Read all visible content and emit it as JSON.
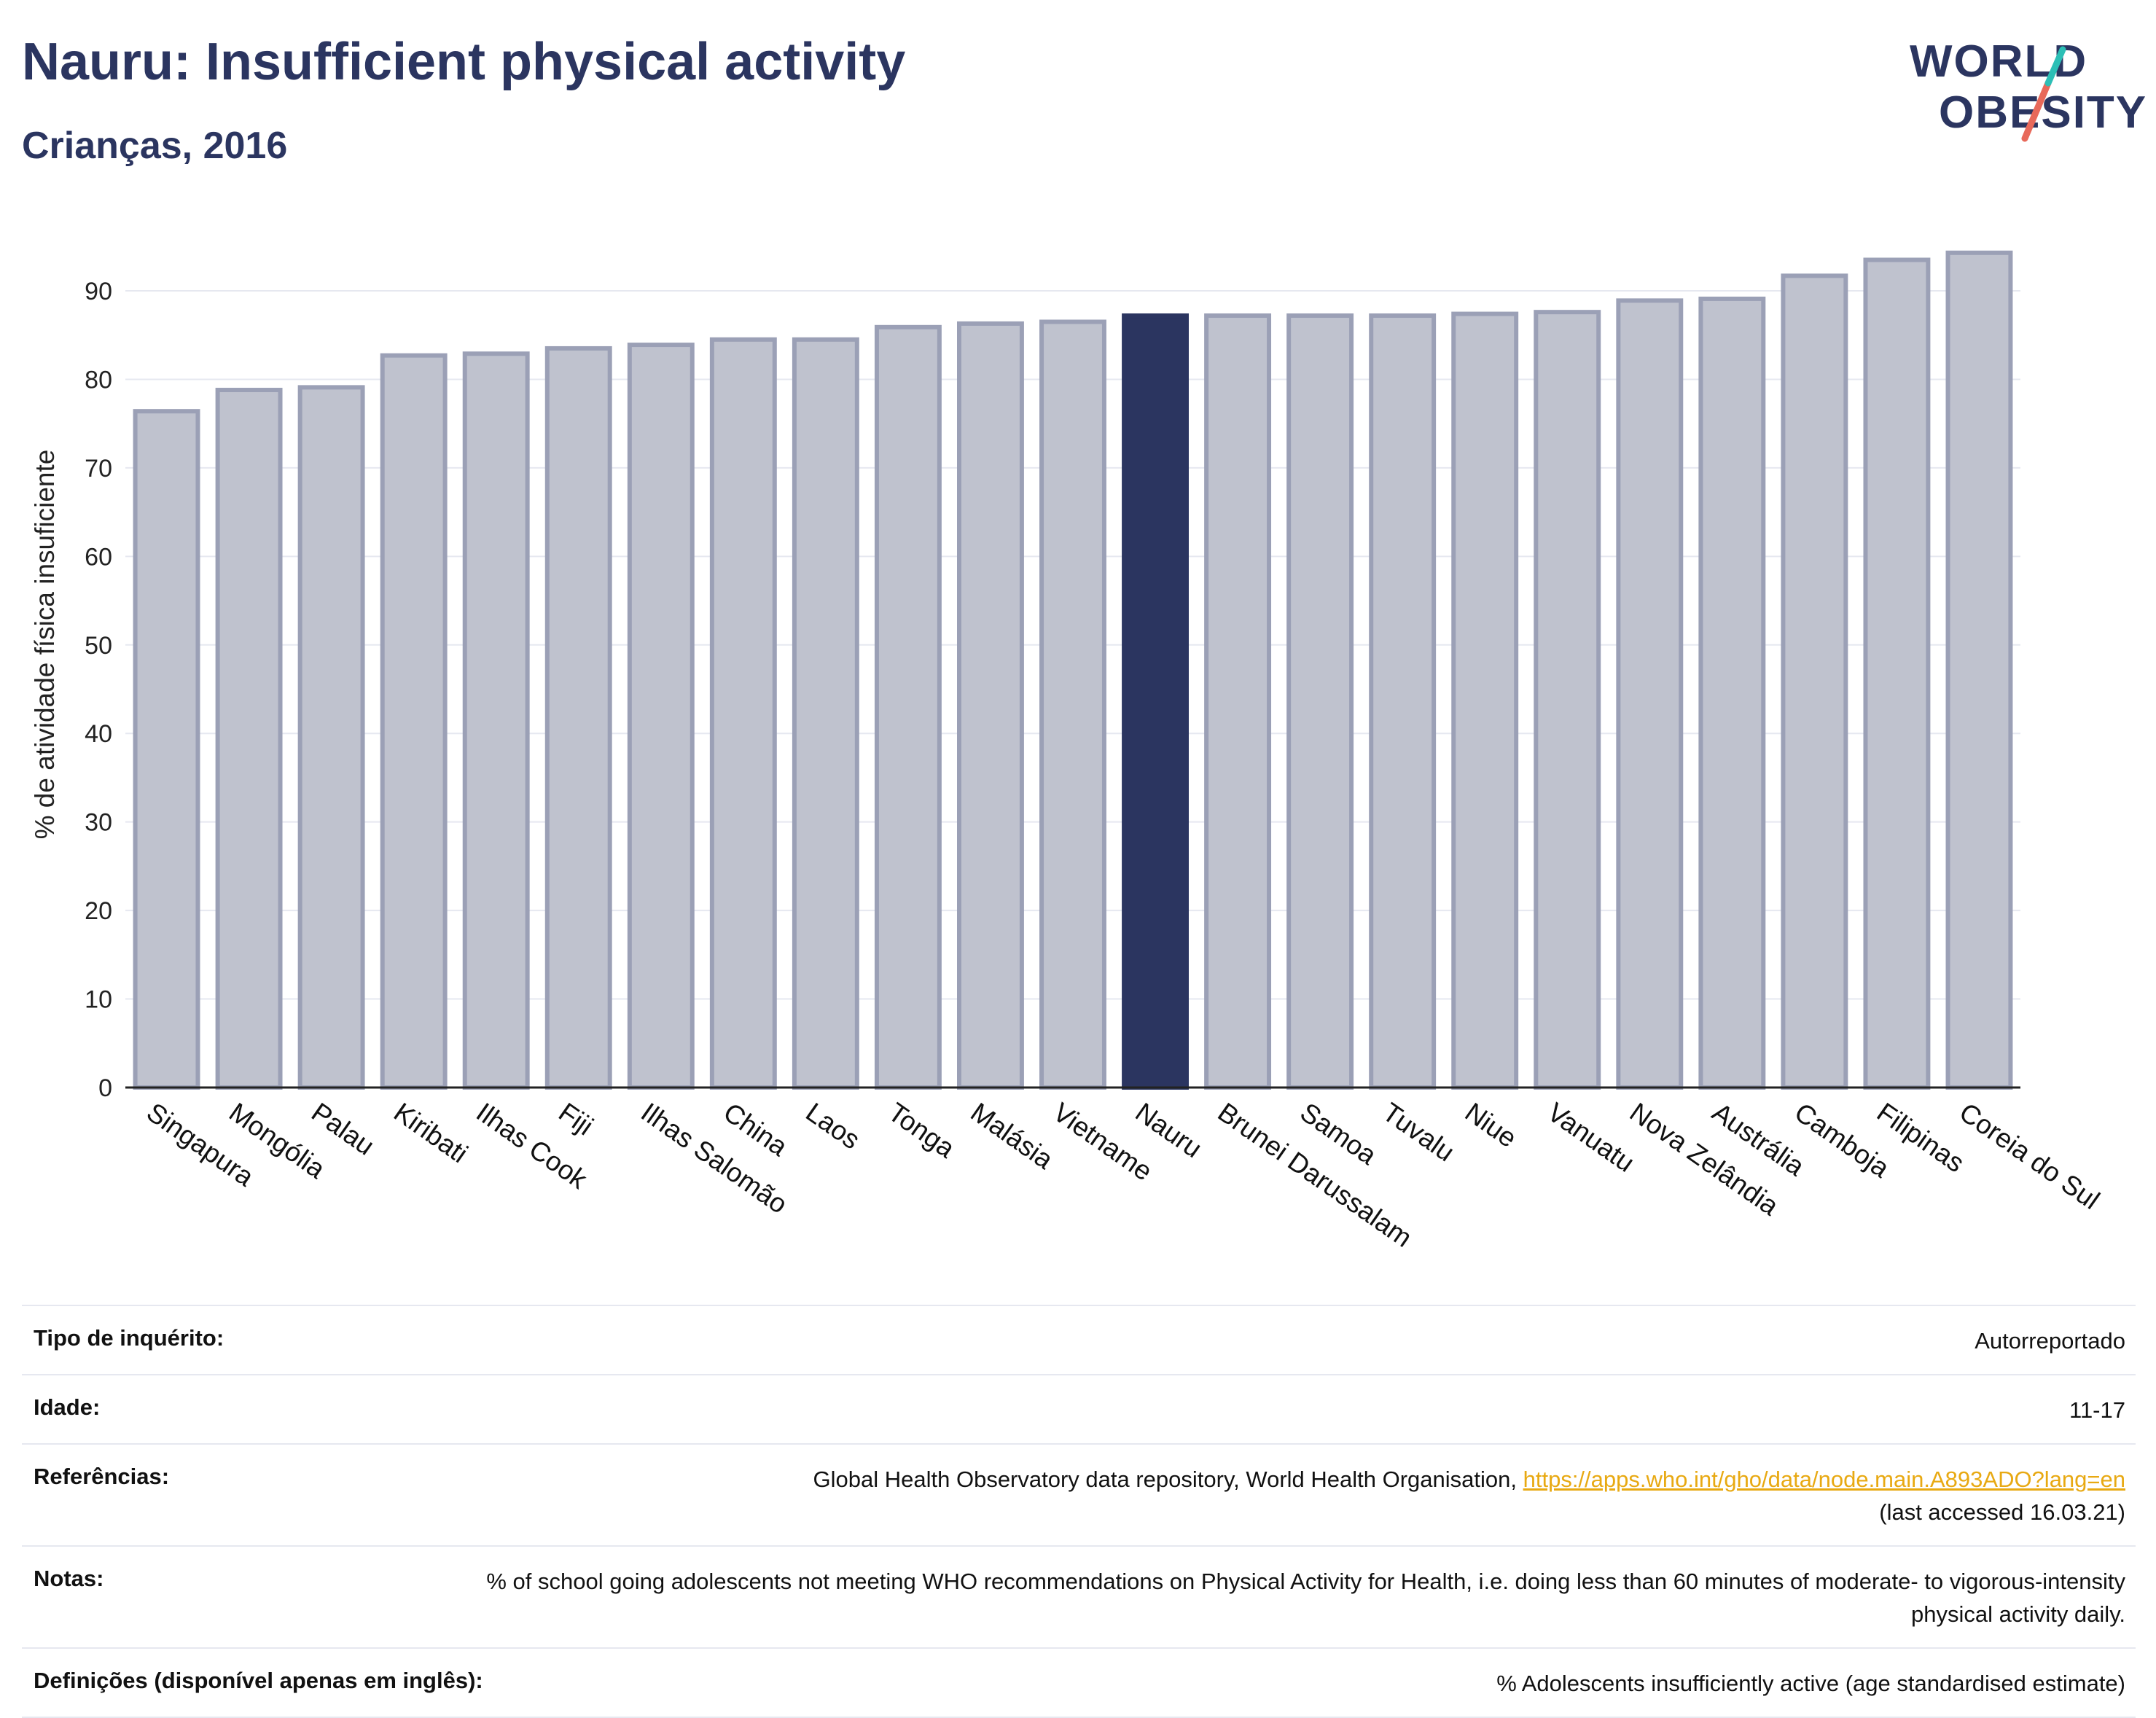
{
  "header": {
    "title": "Nauru: Insufficient physical activity",
    "subtitle": "Crianças, 2016"
  },
  "logo": {
    "line1": "WORLD",
    "line2": "OBESITY"
  },
  "chart_data": {
    "type": "bar",
    "title": "Nauru: Insufficient physical activity",
    "subtitle": "Crianças, 2016",
    "xlabel": "",
    "ylabel": "% de atividade física insuficiente",
    "ylim": [
      0,
      97
    ],
    "yticks": [
      0,
      10,
      20,
      30,
      40,
      50,
      60,
      70,
      80,
      90
    ],
    "grid": true,
    "highlight": "Nauru",
    "colors": {
      "bar": "#bfc2ce",
      "bar_border": "#9ba0b6",
      "highlight": "#2b3560",
      "grid": "#e6e8f0",
      "axis": "#222222"
    },
    "categories": [
      "Singapura",
      "Mongólia",
      "Palau",
      "Kiribati",
      "Ilhas Cook",
      "Fiji",
      "Ilhas Salomão",
      "China",
      "Laos",
      "Tonga",
      "Malásia",
      "Vietname",
      "Nauru",
      "Brunei Darussalam",
      "Samoa",
      "Tuvalu",
      "Niue",
      "Vanuatu",
      "Nova Zelândia",
      "Austrália",
      "Camboja",
      "Filipinas",
      "Coreia do Sul"
    ],
    "values": [
      76.4,
      78.8,
      79.1,
      82.7,
      82.9,
      83.5,
      83.9,
      84.5,
      84.5,
      85.9,
      86.3,
      86.5,
      87.2,
      87.2,
      87.2,
      87.2,
      87.4,
      87.6,
      88.9,
      89.1,
      91.7,
      93.5,
      94.3
    ]
  },
  "info": {
    "rows": [
      {
        "label": "Tipo de inquérito:",
        "value": "Autorreportado"
      },
      {
        "label": "Idade:",
        "value": "11-17"
      },
      {
        "label": "Referências:",
        "value": "Global Health Observatory data repository, World Health Organisation, ",
        "link": "https://apps.who.int/gho/data/node.main.A893ADO?lang=en",
        "value2": "(last accessed 16.03.21)"
      },
      {
        "label": "Notas:",
        "value": "% of school going adolescents not meeting WHO recommendations on Physical Activity for Health, i.e. doing less than 60 minutes of moderate- to vigorous-intensity physical activity daily."
      },
      {
        "label": "Definições (disponível apenas em inglês):",
        "value": "% Adolescents insufficiently active (age standardised estimate)"
      }
    ]
  }
}
